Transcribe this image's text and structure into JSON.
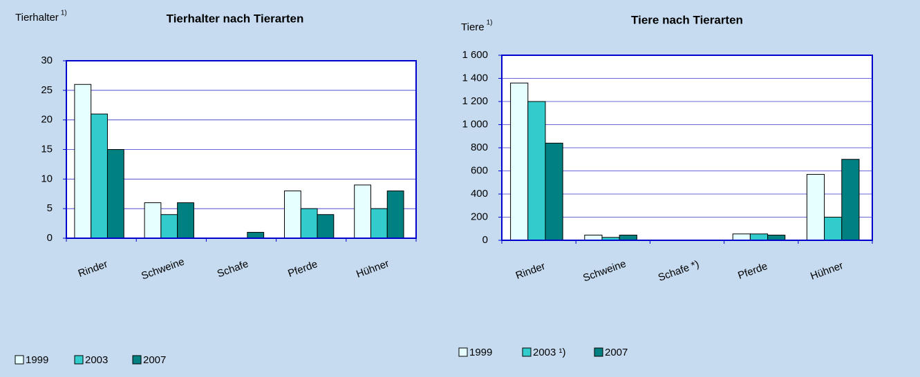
{
  "chart_data": [
    {
      "type": "bar",
      "title": "Tierhalter nach Tierarten",
      "y_label": "Tierhalter",
      "y_label_note": "1)",
      "categories": [
        "Rinder",
        "Schweine",
        "Schafe",
        "Pferde",
        "Hühner"
      ],
      "series": [
        {
          "name": "1999",
          "color": "#e6ffff",
          "values": [
            26,
            6,
            0,
            8,
            9
          ]
        },
        {
          "name": "2003",
          "color": "#33cccc",
          "values": [
            21,
            4,
            0,
            5,
            5
          ]
        },
        {
          "name": "2007",
          "color": "#008080",
          "values": [
            15,
            6,
            1,
            4,
            8
          ]
        }
      ],
      "ylim": [
        0,
        30
      ],
      "yticks": [
        0,
        5,
        10,
        15,
        20,
        25,
        30
      ],
      "grid": true,
      "legend": "bottom"
    },
    {
      "type": "bar",
      "title": "Tiere nach Tierarten",
      "y_label": "Tiere",
      "y_label_note": "1)",
      "categories": [
        "Rinder",
        "Schweine",
        "Schafe *)",
        "Pferde",
        "Hühner"
      ],
      "series": [
        {
          "name": "1999",
          "color": "#e6ffff",
          "values": [
            1360,
            45,
            0,
            55,
            570
          ]
        },
        {
          "name": "2003 ¹)",
          "color": "#33cccc",
          "values": [
            1200,
            25,
            0,
            55,
            200
          ]
        },
        {
          "name": "2007",
          "color": "#008080",
          "values": [
            840,
            45,
            0,
            45,
            700
          ]
        }
      ],
      "ylim": [
        0,
        1600
      ],
      "yticks": [
        0,
        200,
        400,
        600,
        800,
        {
          "value": 1000,
          "label": "1 000"
        },
        {
          "value": 1200,
          "label": "1 200"
        },
        {
          "value": 1400,
          "label": "1 400"
        },
        {
          "value": 1600,
          "label": "1 600"
        }
      ],
      "grid": true,
      "legend": "bottom"
    }
  ]
}
